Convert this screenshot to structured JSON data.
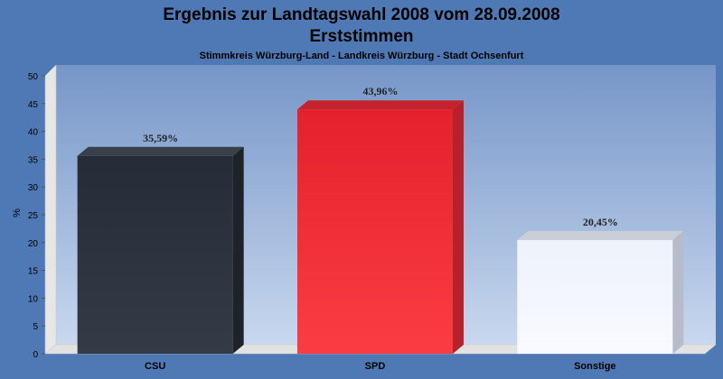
{
  "chart_data": {
    "type": "bar",
    "title": "Ergebnis zur Landtagswahl 2008 vom 28.09.2008",
    "title2": "Erststimmen",
    "subtitle": "Stimmkreis Würzburg-Land - Landkreis Würzburg - Stadt Ochsenfurt",
    "ylabel": "%",
    "xlabel": "",
    "ylim": [
      0,
      50
    ],
    "yticks": [
      "0",
      "5",
      "10",
      "15",
      "20",
      "25",
      "30",
      "35",
      "40",
      "45",
      "50"
    ],
    "categories": [
      "CSU",
      "SPD",
      "Sonstige"
    ],
    "values": [
      35.59,
      43.96,
      20.45
    ],
    "value_labels": [
      "35,59%",
      "43,96%",
      "20,45%"
    ],
    "colors": [
      "#2b313b",
      "#ee2b35",
      "#f3f6fc"
    ],
    "grid": false,
    "legend": "none"
  }
}
